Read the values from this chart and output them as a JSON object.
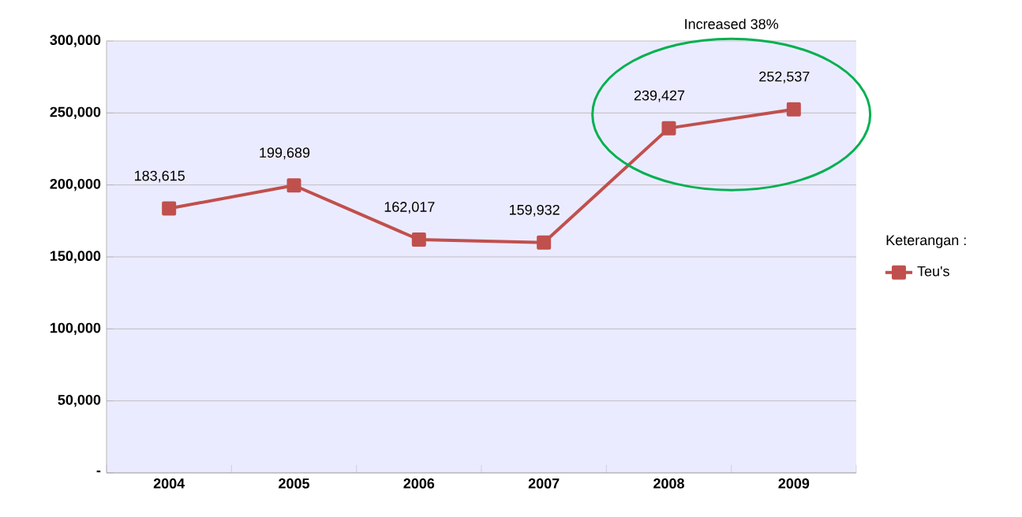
{
  "chart_data": {
    "type": "line",
    "categories": [
      "2004",
      "2005",
      "2006",
      "2007",
      "2008",
      "2009"
    ],
    "series": [
      {
        "name": "Teu's",
        "color": "#c0504d",
        "values": [
          183615,
          199689,
          162017,
          159932,
          239427,
          252537
        ],
        "value_labels": [
          "183,615",
          "199,689",
          "162,017",
          "159,932",
          "239,427",
          "252,537"
        ]
      }
    ],
    "ylim": [
      0,
      300000
    ],
    "yticks": [
      {
        "value": 0,
        "label": "-"
      },
      {
        "value": 50000,
        "label": "50,000"
      },
      {
        "value": 100000,
        "label": "100,000"
      },
      {
        "value": 150000,
        "label": "150,000"
      },
      {
        "value": 200000,
        "label": "200,000"
      },
      {
        "value": 250000,
        "label": "250,000"
      },
      {
        "value": 300000,
        "label": "300,000"
      }
    ],
    "grid": "y",
    "legend": "right",
    "legend_title": "Keterangan :",
    "marker": "square",
    "line_style": "solid",
    "annotations": [
      "Increased 38%"
    ]
  }
}
